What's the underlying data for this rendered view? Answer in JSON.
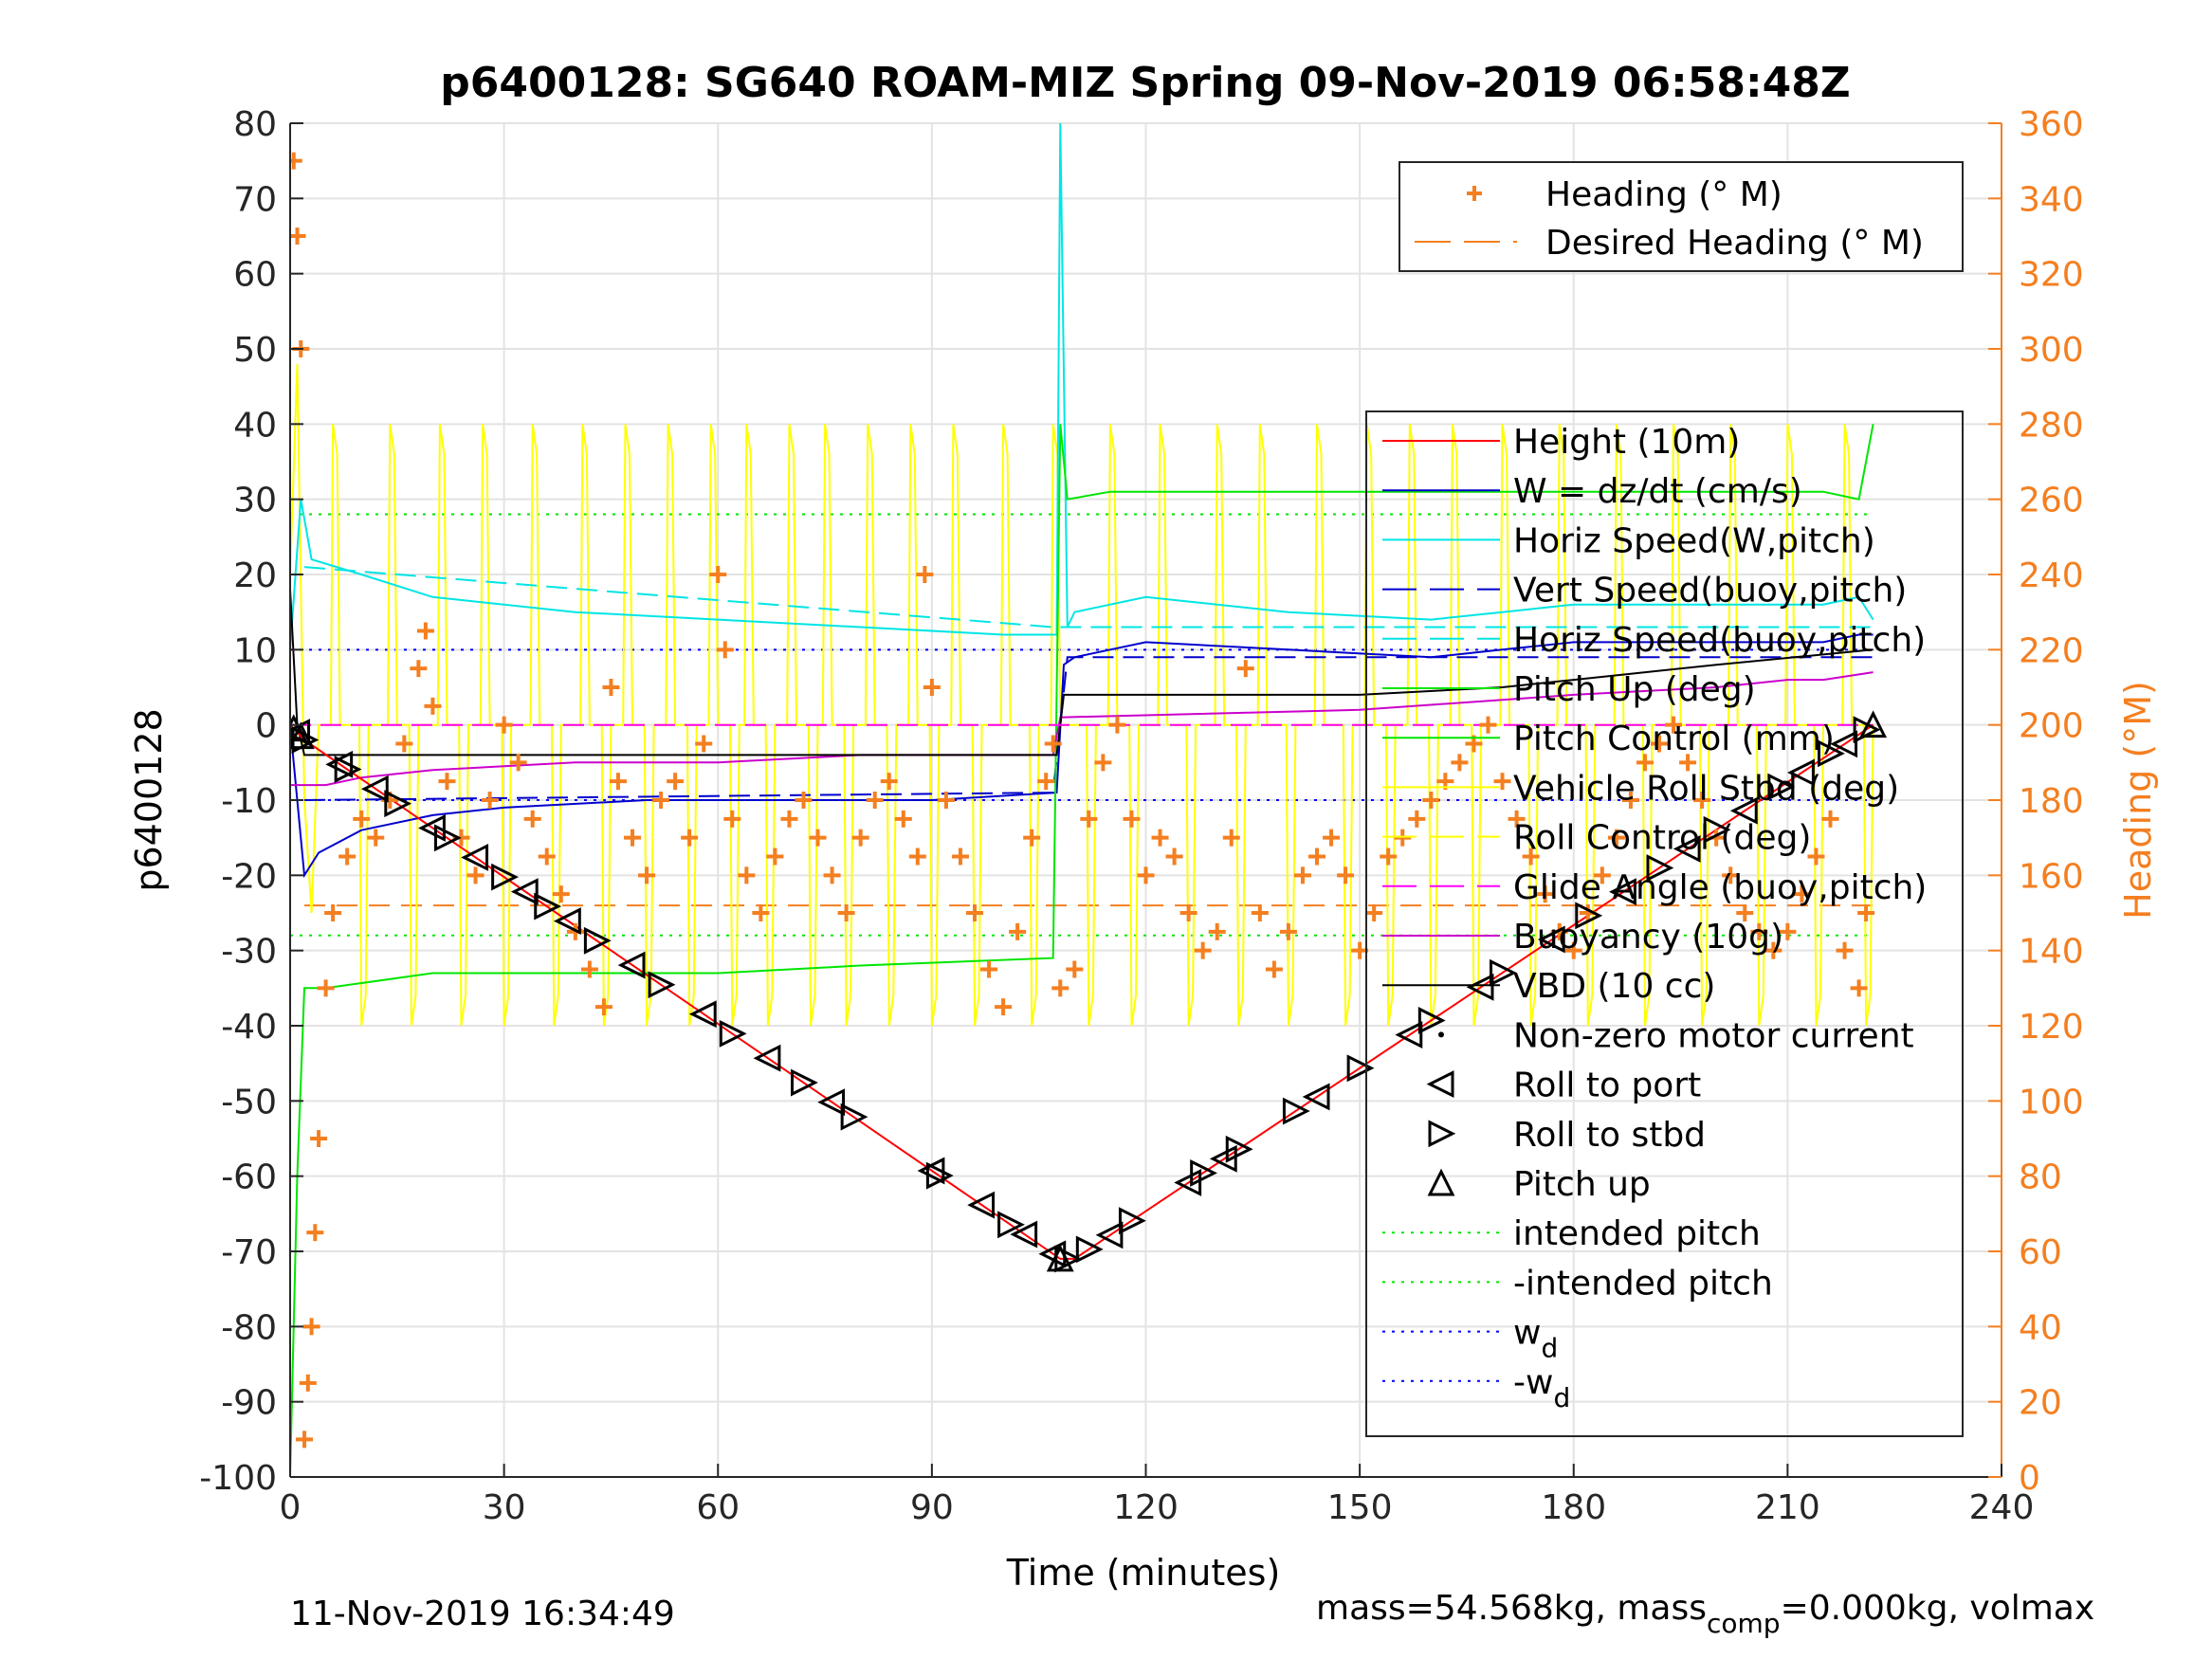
{
  "chart_data": {
    "type": "line",
    "title": "p6400128: SG640 ROAM-MIZ Spring 09-Nov-2019 06:58:48Z",
    "xlabel": "Time (minutes)",
    "ylabel": "p6400128",
    "y2label": "Heading (°M)",
    "xlim": [
      0,
      240
    ],
    "ylim": [
      -100,
      80
    ],
    "y2lim": [
      0,
      360
    ],
    "xticks": [
      0,
      30,
      60,
      90,
      120,
      150,
      180,
      210,
      240
    ],
    "xticklabels": [
      "0",
      "30",
      "60",
      "90",
      "120",
      "150",
      "180",
      "210",
      "240"
    ],
    "yticks": [
      -100,
      -90,
      -80,
      -70,
      -60,
      -50,
      -40,
      -30,
      -20,
      -10,
      0,
      10,
      20,
      30,
      40,
      50,
      60,
      70,
      80
    ],
    "yticklabels": [
      "-100",
      "-90",
      "-80",
      "-70",
      "-60",
      "-50",
      "-40",
      "-30",
      "-20",
      "-10",
      "0",
      "10",
      "20",
      "30",
      "40",
      "50",
      "60",
      "70",
      "80"
    ],
    "y2ticks": [
      0,
      20,
      40,
      60,
      80,
      100,
      120,
      140,
      160,
      180,
      200,
      220,
      240,
      260,
      280,
      300,
      320,
      340,
      360
    ],
    "y2ticklabels": [
      "0",
      "20",
      "40",
      "60",
      "80",
      "100",
      "120",
      "140",
      "160",
      "180",
      "200",
      "220",
      "240",
      "260",
      "280",
      "300",
      "320",
      "340",
      "360"
    ],
    "grid": true,
    "footer_left": "11-Nov-2019 16:34:49",
    "footer_right": {
      "pre": "mass=54.568kg, mass",
      "sub": "comp",
      "post": "=0.000kg, volmax"
    },
    "legend_heading": {
      "position": "top-right",
      "entries": [
        {
          "name": "Heading (° M)",
          "color": "#f47f20",
          "style": "plus"
        },
        {
          "name": "Desired Heading (° M)",
          "color": "#f47f20",
          "style": "dashed"
        }
      ]
    },
    "legend_main": {
      "position": "right",
      "entries": [
        {
          "name": "Height (10m)",
          "color": "#ff0000",
          "style": "solid"
        },
        {
          "name": "W = dz/dt (cm/s)",
          "color": "#0000cc",
          "style": "solid"
        },
        {
          "name": "Horiz Speed(W,pitch)",
          "color": "#00e5e5",
          "style": "solid"
        },
        {
          "name": "Vert Speed(buoy,pitch)",
          "color": "#0000cc",
          "style": "dashed"
        },
        {
          "name": "Horiz Speed(buoy,pitch)",
          "color": "#00e5e5",
          "style": "dashed"
        },
        {
          "name": "Pitch Up (deg)",
          "color": "#00e600",
          "style": "solid"
        },
        {
          "name": "Pitch Control (mm)",
          "color": "#00e600",
          "style": "solid"
        },
        {
          "name": "Vehicle Roll Stbd (deg)",
          "color": "#ffff00",
          "style": "solid"
        },
        {
          "name": "Roll Control (deg)",
          "color": "#ffff00",
          "style": "dashed"
        },
        {
          "name": "Glide Angle (buoy,pitch)",
          "color": "#ff00ff",
          "style": "dashed"
        },
        {
          "name": "Buoyancy (10g)",
          "color": "#cc00cc",
          "style": "solid"
        },
        {
          "name": "VBD (10 cc)",
          "color": "#000000",
          "style": "solid"
        },
        {
          "name": "Non-zero motor current",
          "color": "#000000",
          "style": "dot"
        },
        {
          "name": "Roll to port",
          "color": "#000000",
          "style": "tri-left"
        },
        {
          "name": "Roll to stbd",
          "color": "#000000",
          "style": "tri-right"
        },
        {
          "name": "Pitch up",
          "color": "#000000",
          "style": "tri-up"
        },
        {
          "name": "intended pitch",
          "color": "#00e600",
          "style": "dotted"
        },
        {
          "name": "-intended pitch",
          "color": "#00e600",
          "style": "dotted"
        },
        {
          "name": "w",
          "sub": "d",
          "color": "#0000ff",
          "style": "dotted"
        },
        {
          "name": "-w",
          "sub": "d",
          "color": "#0000ff",
          "style": "dotted"
        }
      ]
    },
    "series": [
      {
        "name": "Height (10m)",
        "color": "#ff0000",
        "x": [
          0,
          2,
          108,
          110,
          222
        ],
        "y": [
          0,
          -2,
          -71,
          -71,
          0
        ]
      },
      {
        "name": "W = dz/dt (cm/s)",
        "color": "#0000cc",
        "x": [
          0,
          1,
          2,
          4,
          10,
          20,
          30,
          50,
          70,
          90,
          107.5,
          108.5,
          110,
          115,
          120,
          140,
          160,
          170,
          180,
          200,
          215,
          220,
          222
        ],
        "y": [
          0,
          -10,
          -20,
          -17,
          -14,
          -12,
          -11,
          -10,
          -10,
          -10,
          -9,
          8,
          9,
          10,
          11,
          10,
          9,
          10,
          11,
          11,
          11,
          12,
          12
        ]
      },
      {
        "name": "Horiz Speed(W,pitch)",
        "color": "#00e5e5",
        "x": [
          0,
          1.5,
          3,
          10,
          20,
          40,
          60,
          80,
          100,
          107.5,
          108,
          109,
          110,
          115,
          120,
          140,
          160,
          170,
          180,
          200,
          215,
          220,
          222
        ],
        "y": [
          10,
          30,
          22,
          20,
          17,
          15,
          14,
          13,
          12,
          12,
          80,
          13,
          15,
          16,
          17,
          15,
          14,
          15,
          16,
          16,
          16,
          17,
          14
        ]
      },
      {
        "name": "Vert Speed(buoy,pitch)",
        "color": "#0000cc",
        "style": "dashed",
        "x": [
          2,
          107,
          109,
          222
        ],
        "y": [
          -10,
          -9,
          9,
          9
        ]
      },
      {
        "name": "Horiz Speed(buoy,pitch)",
        "color": "#00e5e5",
        "style": "dashed",
        "x": [
          2,
          107,
          109,
          222
        ],
        "y": [
          21,
          13,
          13,
          13
        ]
      },
      {
        "name": "Pitch Up (deg)",
        "color": "#00e600",
        "x": [
          0,
          1,
          2,
          5,
          20,
          40,
          60,
          80,
          107,
          108,
          109,
          115,
          140,
          160,
          180,
          200,
          215,
          220,
          222
        ],
        "y": [
          -100,
          -60,
          -35,
          -35,
          -33,
          -33,
          -33,
          -32,
          -31,
          40,
          30,
          31,
          31,
          31,
          31,
          31,
          31,
          30,
          40
        ]
      },
      {
        "name": "Buoyancy (10g)",
        "color": "#cc00cc",
        "x": [
          0,
          5,
          10,
          20,
          40,
          60,
          80,
          107,
          108,
          150,
          180,
          200,
          210,
          215,
          222
        ],
        "y": [
          -8,
          -8,
          -7,
          -6,
          -5,
          -5,
          -4,
          -4,
          1,
          2,
          4,
          5,
          6,
          6,
          7
        ]
      },
      {
        "name": "VBD (10 cc)",
        "color": "#000000",
        "x": [
          0,
          1,
          2,
          107.5,
          108.5,
          150,
          170,
          180,
          200,
          222
        ],
        "y": [
          18,
          0,
          -4,
          -4,
          4,
          4,
          5,
          6,
          8,
          10
        ]
      },
      {
        "name": "Glide Angle (buoy,pitch)",
        "color": "#ff00ff",
        "style": "dashed",
        "x": [
          0,
          222
        ],
        "y": [
          0,
          0
        ]
      }
    ],
    "reference_lines": [
      {
        "name": "intended pitch",
        "y": 28,
        "color": "#00e600"
      },
      {
        "name": "-intended pitch",
        "y": -28,
        "color": "#00e600"
      },
      {
        "name": "w_d",
        "y": 10,
        "color": "#0000ff"
      },
      {
        "name": "-w_d",
        "y": -10,
        "color": "#0000ff"
      }
    ],
    "vehicle_roll": {
      "name": "Vehicle Roll Stbd (deg)",
      "color": "#ffff00",
      "pulses_x": [
        6,
        10,
        14,
        17,
        21,
        24,
        27,
        30,
        34,
        37,
        41,
        44,
        47,
        50,
        53,
        56,
        59,
        62,
        64,
        67,
        70,
        73,
        75,
        78,
        81,
        84,
        87,
        90,
        93,
        96,
        100,
        104,
        107,
        112,
        115,
        118,
        122,
        126,
        130,
        133,
        136,
        140,
        144,
        148,
        151,
        154,
        157,
        160,
        163,
        166,
        170,
        174,
        178,
        182,
        186,
        190,
        194,
        198,
        202,
        206,
        210,
        214,
        218,
        221
      ],
      "base": 0,
      "high": 40,
      "low": -40
    },
    "roll_control": {
      "name": "Roll Control (deg)",
      "color": "#ffff00",
      "x": [
        0,
        222
      ],
      "y": [
        0,
        0
      ]
    },
    "heading_desired": {
      "name": "Desired Heading (° M)",
      "value": 152
    },
    "heading_samples": {
      "name": "Heading (° M)",
      "x": [
        0.5,
        1,
        1.5,
        2,
        2.5,
        3,
        3.5,
        4,
        5,
        6,
        8,
        10,
        12,
        14,
        16,
        18,
        19,
        20,
        22,
        24,
        26,
        28,
        30,
        32,
        34,
        36,
        38,
        40,
        42,
        44,
        45,
        46,
        48,
        50,
        52,
        54,
        56,
        58,
        60,
        61,
        62,
        64,
        66,
        68,
        70,
        72,
        74,
        76,
        78,
        80,
        82,
        84,
        86,
        88,
        89,
        90,
        92,
        94,
        96,
        98,
        100,
        102,
        104,
        106,
        107,
        108,
        110,
        112,
        114,
        116,
        118,
        120,
        122,
        124,
        126,
        128,
        130,
        132,
        134,
        136,
        138,
        140,
        142,
        144,
        146,
        148,
        150,
        152,
        154,
        156,
        158,
        160,
        162,
        164,
        166,
        168,
        170,
        172,
        174,
        176,
        178,
        180,
        182,
        184,
        186,
        188,
        190,
        192,
        194,
        196,
        198,
        200,
        202,
        204,
        206,
        208,
        210,
        212,
        214,
        216,
        218,
        220,
        221
      ],
      "y": [
        350,
        330,
        300,
        10,
        25,
        40,
        65,
        90,
        130,
        150,
        165,
        175,
        170,
        180,
        195,
        215,
        225,
        205,
        185,
        170,
        160,
        180,
        200,
        190,
        175,
        165,
        155,
        145,
        135,
        125,
        210,
        185,
        170,
        160,
        180,
        185,
        170,
        195,
        240,
        220,
        175,
        160,
        150,
        165,
        175,
        180,
        170,
        160,
        150,
        170,
        180,
        185,
        175,
        165,
        240,
        210,
        180,
        165,
        150,
        135,
        125,
        145,
        170,
        185,
        195,
        130,
        135,
        175,
        190,
        200,
        175,
        160,
        170,
        165,
        150,
        140,
        145,
        170,
        215,
        150,
        135,
        145,
        160,
        165,
        170,
        160,
        140,
        150,
        165,
        170,
        175,
        180,
        185,
        190,
        195,
        200,
        185,
        175,
        165,
        155,
        145,
        140,
        150,
        160,
        170,
        180,
        190,
        195,
        200,
        190,
        180,
        170,
        160,
        150,
        145,
        140,
        145,
        155,
        165,
        175,
        140,
        130,
        150
      ]
    },
    "markers": {
      "roll_to_port_x": [
        1,
        7,
        12,
        20,
        26,
        33,
        39,
        48,
        58,
        67,
        76,
        90,
        97,
        103,
        107,
        115,
        126,
        131,
        144,
        157,
        167,
        177,
        187,
        196,
        204,
        212,
        218
      ],
      "roll_to_stbd_x": [
        2,
        8,
        15,
        22,
        30,
        36,
        43,
        52,
        62,
        72,
        79,
        91,
        101,
        109,
        112,
        118,
        128,
        133,
        141,
        150,
        160,
        170,
        182,
        192,
        200,
        209,
        216,
        221
      ],
      "pitch_up_x": [
        0.5,
        1.5,
        108,
        222
      ]
    }
  }
}
